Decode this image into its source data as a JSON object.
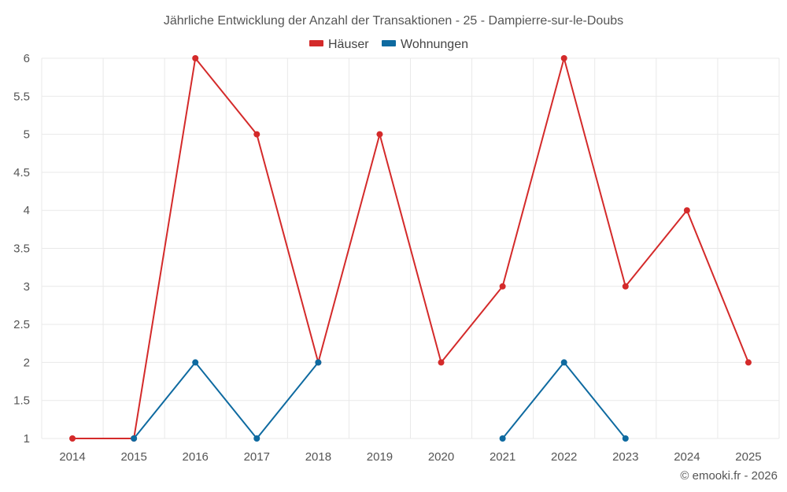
{
  "chart_data": {
    "type": "line",
    "title": "Jährliche Entwicklung der Anzahl der Transaktionen - 25 - Dampierre-sur-le-Doubs",
    "x": [
      "2014",
      "2015",
      "2016",
      "2017",
      "2018",
      "2019",
      "2020",
      "2021",
      "2022",
      "2023",
      "2024",
      "2025"
    ],
    "ylim": [
      1,
      6
    ],
    "yticks": [
      "1",
      "1.5",
      "2",
      "2.5",
      "3",
      "3.5",
      "4",
      "4.5",
      "5",
      "5.5",
      "6"
    ],
    "grid": true,
    "legend_position": "top-center",
    "series": [
      {
        "name": "Häuser",
        "color": "#d42a2a",
        "values": [
          1,
          1,
          6,
          5,
          2,
          5,
          2,
          3,
          6,
          3,
          4,
          2
        ]
      },
      {
        "name": "Wohnungen",
        "color": "#0e6aa0",
        "values": [
          null,
          1,
          2,
          1,
          2,
          null,
          null,
          1,
          2,
          1,
          null,
          null
        ]
      }
    ],
    "credit": "© emooki.fr - 2026"
  }
}
